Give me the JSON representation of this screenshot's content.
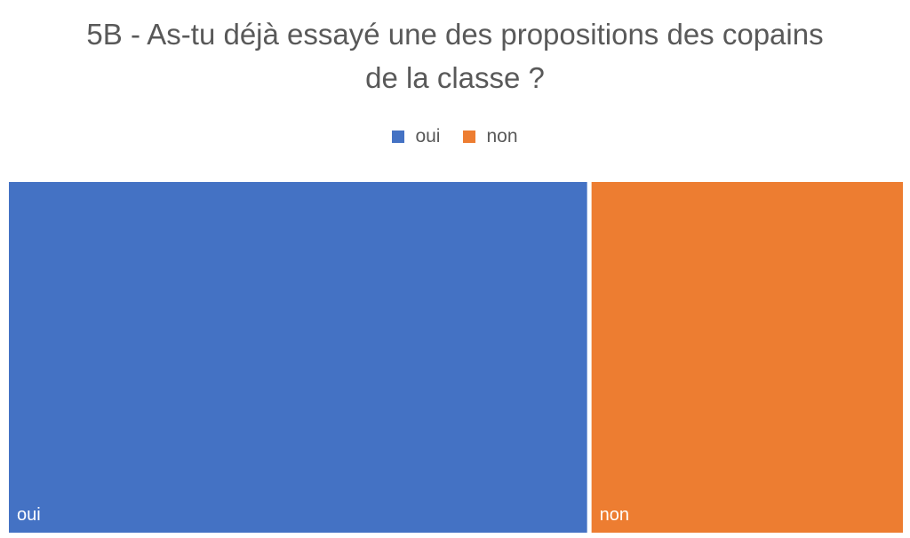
{
  "chart_data": {
    "type": "treemap",
    "title_lines": [
      "5B - As-tu déjà essayé une des propositions des copains",
      "de la classe ?"
    ],
    "legend_position": "top",
    "categories": [
      "oui",
      "non"
    ],
    "values": [
      65,
      35
    ],
    "colors": [
      "#4472C4",
      "#ED7D31"
    ],
    "label_color": "#ffffff"
  }
}
